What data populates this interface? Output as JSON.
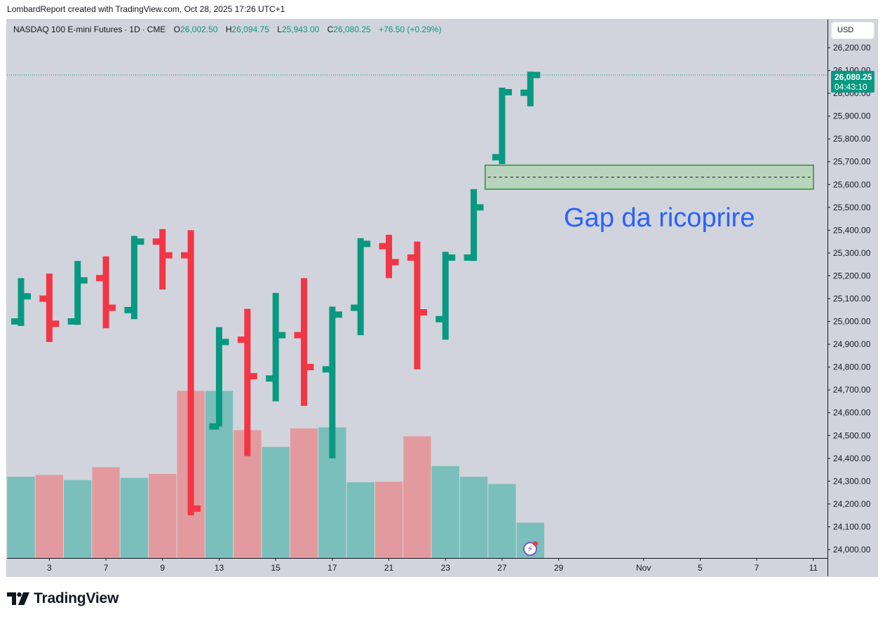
{
  "credit": "LombardReport created with TradingView.com, Oct 28, 2025 17:26 UTC+1",
  "legend": {
    "symbol": "NASDAQ 100 E-mini Futures",
    "interval": "1D",
    "exchange": "CME",
    "open_label": "O",
    "open": "26,002.50",
    "high_label": "H",
    "high": "26,094.75",
    "low_label": "L",
    "low": "25,943.00",
    "close_label": "C",
    "close": "26,080.25",
    "change": "+76.50 (+0.29%)"
  },
  "currency": "USD",
  "last_price": {
    "price": "26,080.25",
    "countdown": "04:43:10"
  },
  "annotation_text": "Gap da ricoprire",
  "brand": "TradingView",
  "colors": {
    "up": "#089981",
    "down": "#f23645",
    "volume_up": "#7abfbb",
    "volume_down": "#e39a9e",
    "background": "#d1d4dc",
    "gap_zone_fill": "#b8d4bc",
    "gap_zone_border": "#2e8b3a",
    "annotation": "#2962ff"
  },
  "chart_data": {
    "type": "ohlc_bar",
    "ylim": [
      23950,
      26300
    ],
    "yticks": [
      "26,200.00",
      "26,100.00",
      "26,000.00",
      "25,900.00",
      "25,800.00",
      "25,700.00",
      "25,600.00",
      "25,500.00",
      "25,400.00",
      "25,300.00",
      "25,200.00",
      "25,100.00",
      "25,000.00",
      "24,900.00",
      "24,800.00",
      "24,700.00",
      "24,600.00",
      "24,500.00",
      "24,400.00",
      "24,300.00",
      "24,200.00",
      "24,100.00",
      "24,000.00"
    ],
    "xticks": [
      {
        "label": "3",
        "slot": 1
      },
      {
        "label": "7",
        "slot": 3
      },
      {
        "label": "9",
        "slot": 5
      },
      {
        "label": "13",
        "slot": 7
      },
      {
        "label": "15",
        "slot": 9
      },
      {
        "label": "17",
        "slot": 11
      },
      {
        "label": "21",
        "slot": 13
      },
      {
        "label": "23",
        "slot": 15
      },
      {
        "label": "27",
        "slot": 17
      },
      {
        "label": "29",
        "slot": 19
      },
      {
        "label": "Nov",
        "slot": 22
      },
      {
        "label": "5",
        "slot": 24
      },
      {
        "label": "7",
        "slot": 26
      },
      {
        "label": "11",
        "slot": 28
      }
    ],
    "bars": [
      {
        "o": 25000,
        "h": 25190,
        "l": 24980,
        "c": 25110,
        "v": 1450
      },
      {
        "o": 25100,
        "h": 25210,
        "l": 24910,
        "c": 24990,
        "v": 1480
      },
      {
        "o": 25000,
        "h": 25265,
        "l": 24985,
        "c": 25180,
        "v": 1390
      },
      {
        "o": 25190,
        "h": 25285,
        "l": 24970,
        "c": 25060,
        "v": 1620
      },
      {
        "o": 25050,
        "h": 25375,
        "l": 25010,
        "c": 25350,
        "v": 1430
      },
      {
        "o": 25350,
        "h": 25405,
        "l": 25140,
        "c": 25290,
        "v": 1500
      },
      {
        "o": 25290,
        "h": 25400,
        "l": 24150,
        "c": 24180,
        "v": 2980
      },
      {
        "o": 24540,
        "h": 24975,
        "l": 24540,
        "c": 24910,
        "v": 2980
      },
      {
        "o": 24920,
        "h": 25055,
        "l": 24410,
        "c": 24760,
        "v": 2280
      },
      {
        "o": 24750,
        "h": 25125,
        "l": 24650,
        "c": 24940,
        "v": 1980
      },
      {
        "o": 24940,
        "h": 25190,
        "l": 24630,
        "c": 24800,
        "v": 2310
      },
      {
        "o": 24790,
        "h": 25065,
        "l": 24400,
        "c": 25030,
        "v": 2330
      },
      {
        "o": 25060,
        "h": 25365,
        "l": 24940,
        "c": 25340,
        "v": 1350
      },
      {
        "o": 25330,
        "h": 25380,
        "l": 25190,
        "c": 25260,
        "v": 1360
      },
      {
        "o": 25280,
        "h": 25350,
        "l": 24790,
        "c": 25040,
        "v": 2170
      },
      {
        "o": 25010,
        "h": 25305,
        "l": 24920,
        "c": 25280,
        "v": 1640
      },
      {
        "o": 25280,
        "h": 25580,
        "l": 25265,
        "c": 25500,
        "v": 1450
      },
      {
        "o": 25720,
        "h": 26025,
        "l": 25690,
        "c": 26005,
        "v": 1320
      },
      {
        "o": 26002.5,
        "h": 26094.75,
        "l": 25943,
        "c": 26080.25,
        "v": 630
      }
    ],
    "volume_scale_max": 5000,
    "last_price": 26080.25,
    "gap_zone": {
      "from_slot": 16.5,
      "to_slot": 28,
      "low": 25580,
      "high": 25685,
      "midline": 25632.5
    }
  }
}
